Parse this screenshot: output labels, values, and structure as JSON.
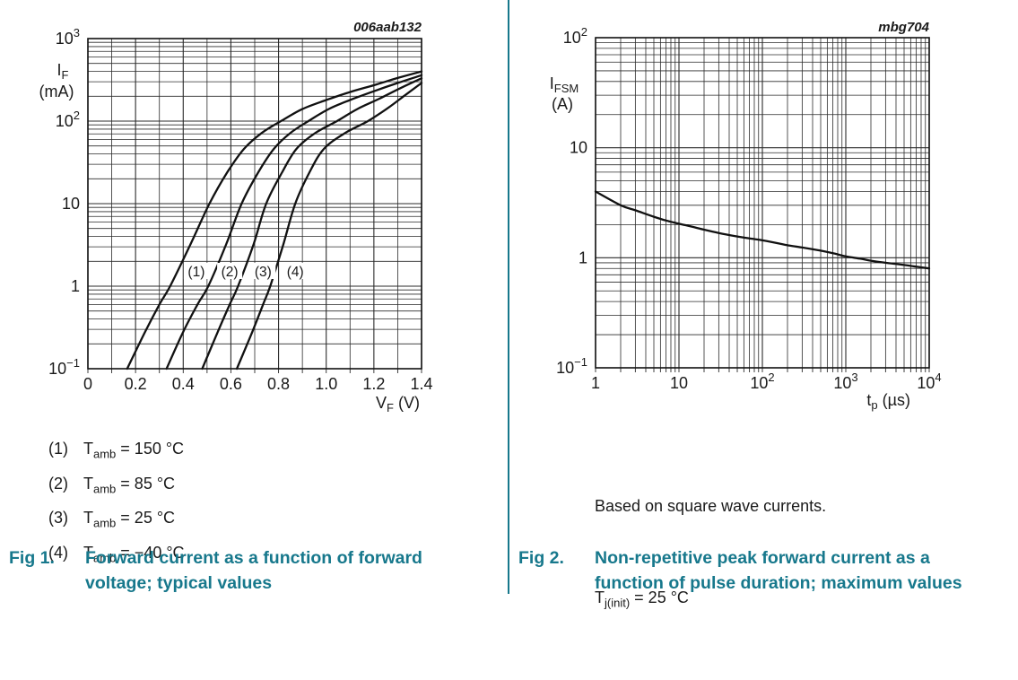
{
  "accent_color": "#17788c",
  "text_color": "#1a1a1a",
  "fig1": {
    "code": "006aab132",
    "y_label": {
      "sym": "I",
      "sub": "F",
      "unit": "(mA)"
    },
    "x_label": {
      "sym": "V",
      "sub": "F",
      "unit": "(V)"
    },
    "legend": [
      {
        "num": "(1)",
        "sym": "T",
        "sub": "amb",
        "val": "= 150 °C"
      },
      {
        "num": "(2)",
        "sym": "T",
        "sub": "amb",
        "val": "= 85 °C"
      },
      {
        "num": "(3)",
        "sym": "T",
        "sub": "amb",
        "val": "= 25 °C"
      },
      {
        "num": "(4)",
        "sym": "T",
        "sub": "amb",
        "val": "= −40 °C"
      }
    ],
    "caption_label": "Fig 1.",
    "caption_text": "Forward current as a function of forward\nvoltage; typical values"
  },
  "fig2": {
    "code": "mbg704",
    "y_label": {
      "sym": "I",
      "sub": "FSM",
      "unit": "(A)"
    },
    "x_label": {
      "sym": "t",
      "sub": "p",
      "unit": "(µs)"
    },
    "note1": "Based on square wave currents.",
    "note2": {
      "sym": "T",
      "sub": "j(init)",
      "val": "= 25 °C"
    },
    "caption_label": "Fig 2.",
    "caption_text": "Non-repetitive peak forward current as a\nfunction of pulse duration; maximum values"
  },
  "chart_data": [
    {
      "type": "line",
      "title": "Fig 1. Forward current as a function of forward voltage; typical values",
      "watermark": "006aab132",
      "xlabel": "VF (V)",
      "ylabel": "IF (mA)",
      "x_scale": "linear",
      "y_scale": "log",
      "xlim": [
        0,
        1.4
      ],
      "ylim": [
        0.1,
        1000
      ],
      "x_major_step": 0.2,
      "x_minor_step": 0.1,
      "grid": true,
      "legend_position": "below",
      "series": [
        {
          "name": "(1) Tamb = 150 °C",
          "curve_label": "(1)",
          "label_pos": [
            0.455,
            1.53
          ],
          "points": [
            [
              0.165,
              0.1
            ],
            [
              0.24,
              0.28
            ],
            [
              0.3,
              0.6
            ],
            [
              0.345,
              1
            ],
            [
              0.43,
              3.2
            ],
            [
              0.51,
              10
            ],
            [
              0.585,
              24
            ],
            [
              0.655,
              46
            ],
            [
              0.73,
              72
            ],
            [
              0.81,
              100
            ],
            [
              0.9,
              140
            ],
            [
              1.0,
              180
            ],
            [
              1.1,
              225
            ],
            [
              1.2,
              272
            ],
            [
              1.3,
              333
            ],
            [
              1.4,
              400
            ]
          ]
        },
        {
          "name": "(2) Tamb = 85 °C",
          "curve_label": "(2)",
          "label_pos": [
            0.595,
            1.53
          ],
          "points": [
            [
              0.33,
              0.1
            ],
            [
              0.4,
              0.28
            ],
            [
              0.46,
              0.6
            ],
            [
              0.505,
              1
            ],
            [
              0.58,
              3.2
            ],
            [
              0.645,
              10
            ],
            [
              0.715,
              24
            ],
            [
              0.78,
              46
            ],
            [
              0.85,
              72
            ],
            [
              0.925,
              100
            ],
            [
              1.01,
              140
            ],
            [
              1.1,
              180
            ],
            [
              1.2,
              230
            ],
            [
              1.3,
              290
            ],
            [
              1.4,
              360
            ]
          ]
        },
        {
          "name": "(3) Tamb = 25 °C",
          "curve_label": "(3)",
          "label_pos": [
            0.735,
            1.53
          ],
          "points": [
            [
              0.48,
              0.1
            ],
            [
              0.545,
              0.28
            ],
            [
              0.595,
              0.6
            ],
            [
              0.63,
              1
            ],
            [
              0.695,
              3.2
            ],
            [
              0.748,
              10
            ],
            [
              0.815,
              24
            ],
            [
              0.875,
              46
            ],
            [
              0.955,
              72
            ],
            [
              1.045,
              100
            ],
            [
              1.13,
              140
            ],
            [
              1.22,
              185
            ],
            [
              1.31,
              250
            ],
            [
              1.4,
              330
            ]
          ]
        },
        {
          "name": "(4) Tamb = −40 °C",
          "curve_label": "(4)",
          "label_pos": [
            0.87,
            1.53
          ],
          "points": [
            [
              0.625,
              0.1
            ],
            [
              0.69,
              0.28
            ],
            [
              0.735,
              0.6
            ],
            [
              0.765,
              1
            ],
            [
              0.82,
              3.2
            ],
            [
              0.87,
              10
            ],
            [
              0.93,
              24
            ],
            [
              0.99,
              46
            ],
            [
              1.08,
              72
            ],
            [
              1.175,
              100
            ],
            [
              1.26,
              145
            ],
            [
              1.33,
              205
            ],
            [
              1.4,
              290
            ]
          ]
        }
      ]
    },
    {
      "type": "line",
      "title": "Fig 2. Non-repetitive peak forward current as a function of pulse duration; maximum values",
      "watermark": "mbg704",
      "xlabel": "tp (µs)",
      "ylabel": "IFSM (A)",
      "x_scale": "log",
      "y_scale": "log",
      "xlim": [
        1,
        10000
      ],
      "ylim": [
        0.1,
        100
      ],
      "grid": true,
      "conditions": [
        "Based on square wave currents.",
        "Tj(init) = 25 °C"
      ],
      "series": [
        {
          "name": "IFSM maximum",
          "curve_label": "",
          "label_pos": null,
          "points": [
            [
              1,
              4.0
            ],
            [
              2,
              3.0
            ],
            [
              3,
              2.7
            ],
            [
              5,
              2.36
            ],
            [
              7,
              2.18
            ],
            [
              10,
              2.04
            ],
            [
              15,
              1.9
            ],
            [
              20,
              1.8
            ],
            [
              30,
              1.68
            ],
            [
              50,
              1.56
            ],
            [
              70,
              1.5
            ],
            [
              100,
              1.44
            ],
            [
              150,
              1.36
            ],
            [
              200,
              1.3
            ],
            [
              300,
              1.24
            ],
            [
              500,
              1.16
            ],
            [
              700,
              1.1
            ],
            [
              1000,
              1.03
            ],
            [
              1500,
              0.98
            ],
            [
              2000,
              0.94
            ],
            [
              3000,
              0.9
            ],
            [
              5000,
              0.86
            ],
            [
              7000,
              0.83
            ],
            [
              10000,
              0.8
            ]
          ]
        }
      ]
    }
  ]
}
